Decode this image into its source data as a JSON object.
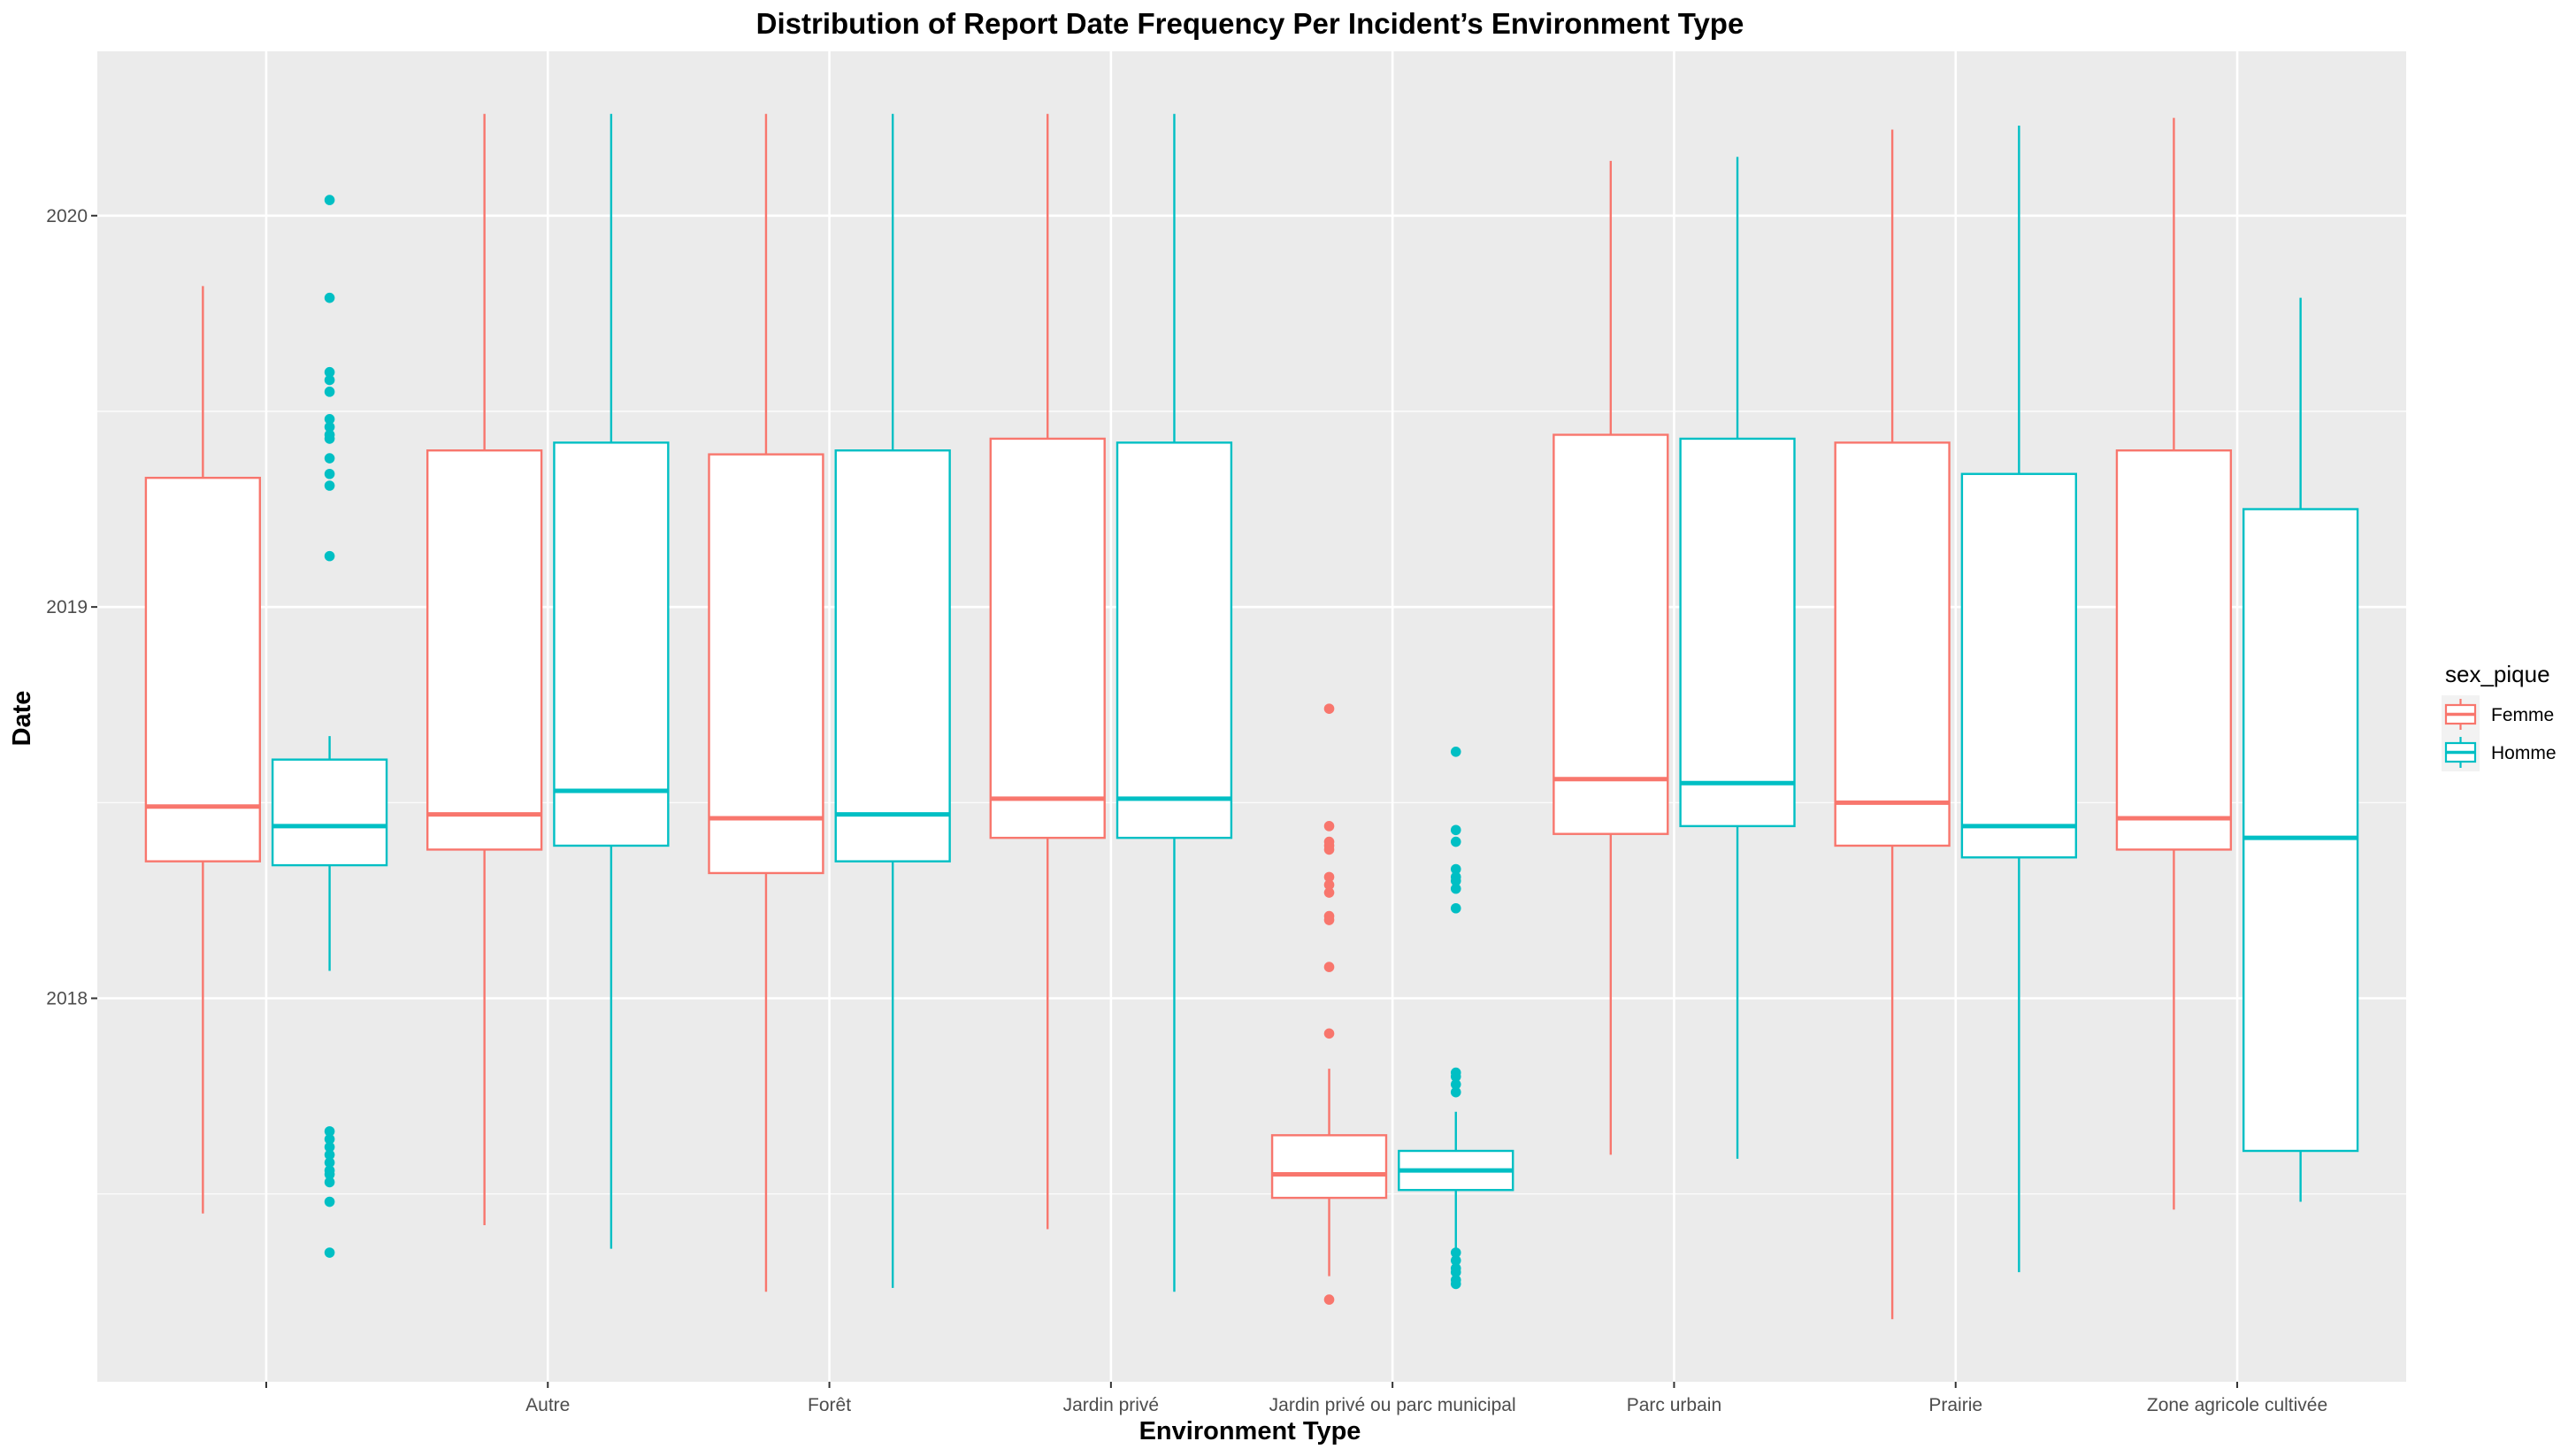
{
  "chart_data": {
    "type": "boxplot",
    "title": "Distribution of Report Date Frequency Per Incident’s Environment Type",
    "xlabel": "Environment Type",
    "ylabel": "Date",
    "ylim": [
      2017.02,
      2020.42
    ],
    "yticks": [
      2018,
      2019,
      2020
    ],
    "ytick_labels": [
      "2018",
      "2019",
      "2020"
    ],
    "categories": [
      "",
      "Autre",
      "Forêt",
      "Jardin privé",
      "Jardin privé ou parc municipal",
      "Parc urbain",
      "Prairie",
      "Zone agricole cultivée"
    ],
    "legend": {
      "title": "sex_pique",
      "position": "right"
    },
    "grid": true,
    "series": [
      {
        "name": "Femme",
        "color": "#F8766D",
        "boxes": [
          {
            "lower_whisker": 2017.45,
            "q1": 2018.35,
            "median": 2018.49,
            "q3": 2019.33,
            "upper_whisker": 2019.82,
            "outliers": []
          },
          {
            "lower_whisker": 2017.42,
            "q1": 2018.38,
            "median": 2018.47,
            "q3": 2019.4,
            "upper_whisker": 2020.26,
            "outliers": []
          },
          {
            "lower_whisker": 2017.25,
            "q1": 2018.32,
            "median": 2018.46,
            "q3": 2019.39,
            "upper_whisker": 2020.26,
            "outliers": []
          },
          {
            "lower_whisker": 2017.41,
            "q1": 2018.41,
            "median": 2018.51,
            "q3": 2019.43,
            "upper_whisker": 2020.26,
            "outliers": []
          },
          {
            "lower_whisker": 2017.29,
            "q1": 2017.49,
            "median": 2017.55,
            "q3": 2017.65,
            "upper_whisker": 2017.82,
            "outliers": [
              2017.23,
              2017.91,
              2018.08,
              2018.2,
              2018.21,
              2018.27,
              2018.29,
              2018.31,
              2018.38,
              2018.39,
              2018.4,
              2018.44,
              2018.74
            ]
          },
          {
            "lower_whisker": 2017.6,
            "q1": 2018.42,
            "median": 2018.56,
            "q3": 2019.44,
            "upper_whisker": 2020.14,
            "outliers": []
          },
          {
            "lower_whisker": 2017.18,
            "q1": 2018.39,
            "median": 2018.5,
            "q3": 2019.42,
            "upper_whisker": 2020.22,
            "outliers": []
          },
          {
            "lower_whisker": 2017.46,
            "q1": 2018.38,
            "median": 2018.46,
            "q3": 2019.4,
            "upper_whisker": 2020.25,
            "outliers": []
          }
        ]
      },
      {
        "name": "Homme",
        "color": "#00BFC4",
        "boxes": [
          {
            "lower_whisker": 2018.07,
            "q1": 2018.34,
            "median": 2018.44,
            "q3": 2018.61,
            "upper_whisker": 2018.67,
            "outliers": [
              2017.35,
              2017.48,
              2017.53,
              2017.55,
              2017.56,
              2017.58,
              2017.6,
              2017.62,
              2017.64,
              2017.66,
              2019.13,
              2019.31,
              2019.34,
              2019.38,
              2019.43,
              2019.44,
              2019.46,
              2019.48,
              2019.55,
              2019.58,
              2019.6,
              2019.79,
              2020.04
            ]
          },
          {
            "lower_whisker": 2017.36,
            "q1": 2018.39,
            "median": 2018.53,
            "q3": 2019.42,
            "upper_whisker": 2020.26,
            "outliers": []
          },
          {
            "lower_whisker": 2017.26,
            "q1": 2018.35,
            "median": 2018.47,
            "q3": 2019.4,
            "upper_whisker": 2020.26,
            "outliers": []
          },
          {
            "lower_whisker": 2017.25,
            "q1": 2018.41,
            "median": 2018.51,
            "q3": 2019.42,
            "upper_whisker": 2020.26,
            "outliers": []
          },
          {
            "lower_whisker": 2017.35,
            "q1": 2017.51,
            "median": 2017.56,
            "q3": 2017.61,
            "upper_whisker": 2017.71,
            "outliers": [
              2017.27,
              2017.28,
              2017.3,
              2017.31,
              2017.33,
              2017.35,
              2017.76,
              2017.78,
              2017.8,
              2017.81,
              2018.23,
              2018.28,
              2018.3,
              2018.31,
              2018.33,
              2018.4,
              2018.43,
              2018.63
            ]
          },
          {
            "lower_whisker": 2017.59,
            "q1": 2018.44,
            "median": 2018.55,
            "q3": 2019.43,
            "upper_whisker": 2020.15,
            "outliers": []
          },
          {
            "lower_whisker": 2017.3,
            "q1": 2018.36,
            "median": 2018.44,
            "q3": 2019.34,
            "upper_whisker": 2020.23,
            "outliers": []
          },
          {
            "lower_whisker": 2017.48,
            "q1": 2017.61,
            "median": 2018.41,
            "q3": 2019.25,
            "upper_whisker": 2019.79,
            "outliers": []
          }
        ]
      }
    ]
  }
}
